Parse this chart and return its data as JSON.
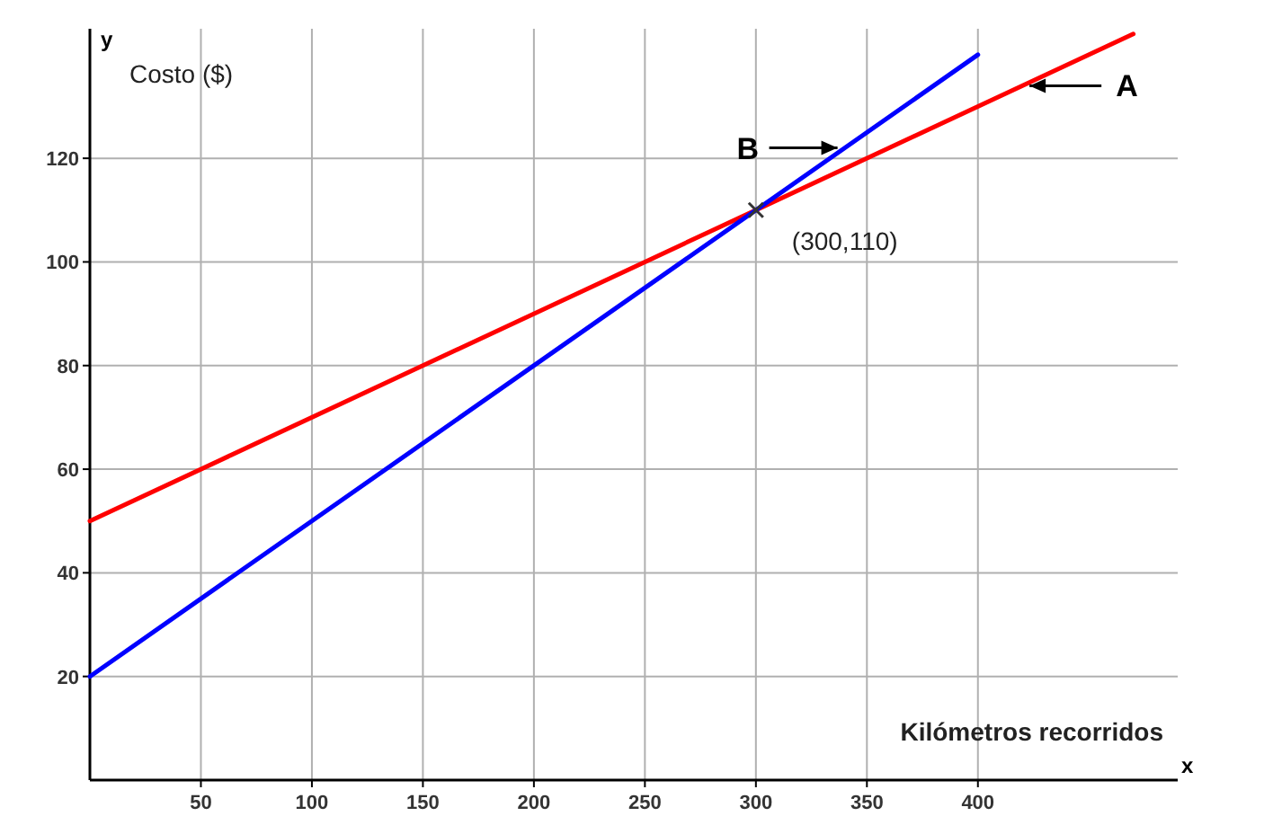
{
  "chart_data": {
    "type": "line",
    "xlabel": "x",
    "ylabel": "y",
    "xlim": [
      0,
      490
    ],
    "ylim": [
      0,
      145
    ],
    "xticks": [
      50,
      100,
      150,
      200,
      250,
      300,
      350,
      400
    ],
    "yticks": [
      20,
      40,
      60,
      80,
      100,
      120
    ],
    "grid": true,
    "marker": "none",
    "line_style": "solid",
    "series": [
      {
        "color": "#ff0000",
        "x": [
          0,
          470
        ],
        "values": [
          50,
          144
        ]
      },
      {
        "color": "#0000ff",
        "x": [
          0,
          400
        ],
        "values": [
          20,
          140
        ]
      }
    ],
    "annotations": [
      "Costo ($)",
      "Kilómetros recorridos",
      {
        "text": "(300,110)",
        "x": 300,
        "y": 110
      },
      {
        "text": "A",
        "x": 420,
        "y": 134
      },
      {
        "text": "B",
        "x": 340,
        "y": 122
      }
    ]
  }
}
